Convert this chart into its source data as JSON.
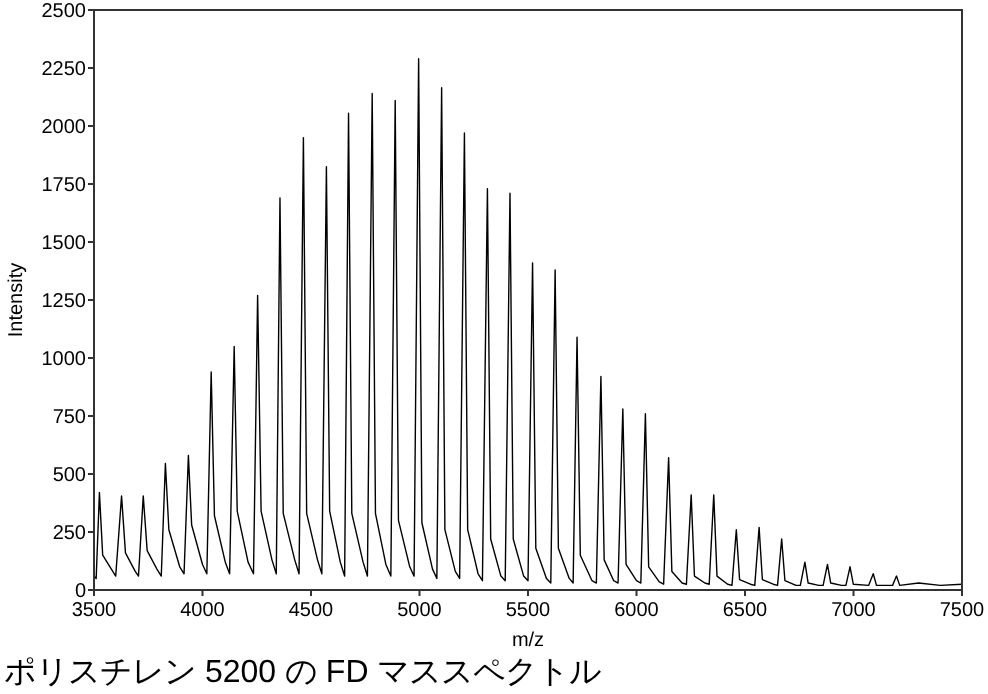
{
  "chart_data": {
    "type": "line",
    "title": "ポリスチレン 5200 の FD マススペクトル",
    "xlabel": "m/z",
    "ylabel": "Intensity",
    "xlim": [
      3500,
      7500
    ],
    "xticks": [
      3500,
      4000,
      4500,
      5000,
      5500,
      6000,
      6500,
      7000,
      7500
    ],
    "ylim": [
      0,
      2500
    ],
    "yticks": [
      0,
      250,
      500,
      750,
      1000,
      1250,
      1500,
      1750,
      2000,
      2250,
      2500
    ],
    "grid": false,
    "marker": "none",
    "line_style": "solid",
    "series": [
      {
        "color": "#000000",
        "x": [
          3500,
          3510,
          3525,
          3540,
          3580,
          3600,
          3627,
          3645,
          3690,
          3705,
          3727,
          3745,
          3790,
          3810,
          3829,
          3845,
          3895,
          3915,
          3935,
          3950,
          4000,
          4020,
          4040,
          4055,
          4105,
          4125,
          4146,
          4160,
          4210,
          4235,
          4254,
          4270,
          4320,
          4340,
          4357,
          4372,
          4425,
          4445,
          4465,
          4480,
          4530,
          4550,
          4571,
          4586,
          4635,
          4655,
          4673,
          4688,
          4740,
          4760,
          4782,
          4797,
          4845,
          4868,
          4888,
          4903,
          4955,
          4975,
          4996,
          5011,
          5060,
          5080,
          5102,
          5117,
          5165,
          5185,
          5207,
          5222,
          5270,
          5290,
          5313,
          5328,
          5375,
          5395,
          5417,
          5432,
          5480,
          5500,
          5521,
          5536,
          5585,
          5605,
          5625,
          5640,
          5690,
          5708,
          5726,
          5741,
          5795,
          5815,
          5836,
          5851,
          5895,
          5915,
          5937,
          5952,
          6000,
          6020,
          6041,
          6056,
          6105,
          6125,
          6148,
          6163,
          6210,
          6230,
          6252,
          6267,
          6315,
          6335,
          6356,
          6371,
          6420,
          6440,
          6460,
          6475,
          6525,
          6545,
          6565,
          6580,
          6630,
          6650,
          6669,
          6684,
          6735,
          6755,
          6776,
          6791,
          6840,
          6860,
          6880,
          6895,
          6945,
          6965,
          6984,
          6999,
          7070,
          7091,
          7106,
          7180,
          7198,
          7213,
          7300,
          7400,
          7500
        ],
        "values": [
          60,
          50,
          420,
          150,
          90,
          60,
          405,
          160,
          80,
          60,
          405,
          170,
          90,
          60,
          545,
          260,
          100,
          70,
          580,
          280,
          110,
          70,
          940,
          320,
          120,
          70,
          1050,
          340,
          120,
          70,
          1270,
          340,
          130,
          70,
          1690,
          330,
          130,
          70,
          1950,
          330,
          130,
          70,
          1825,
          340,
          120,
          60,
          2055,
          330,
          120,
          60,
          2140,
          330,
          110,
          60,
          2110,
          300,
          100,
          60,
          2290,
          290,
          90,
          50,
          2165,
          260,
          80,
          50,
          1970,
          260,
          70,
          40,
          1730,
          220,
          60,
          40,
          1710,
          220,
          60,
          40,
          1410,
          180,
          50,
          30,
          1380,
          180,
          50,
          30,
          1090,
          150,
          40,
          30,
          920,
          130,
          40,
          30,
          780,
          110,
          40,
          30,
          760,
          100,
          35,
          25,
          570,
          80,
          30,
          25,
          410,
          60,
          30,
          25,
          410,
          60,
          25,
          20,
          260,
          45,
          25,
          20,
          270,
          45,
          25,
          20,
          220,
          40,
          20,
          20,
          120,
          30,
          20,
          20,
          110,
          30,
          20,
          20,
          100,
          25,
          20,
          70,
          20,
          20,
          60,
          20,
          30,
          20,
          25
        ]
      }
    ]
  }
}
